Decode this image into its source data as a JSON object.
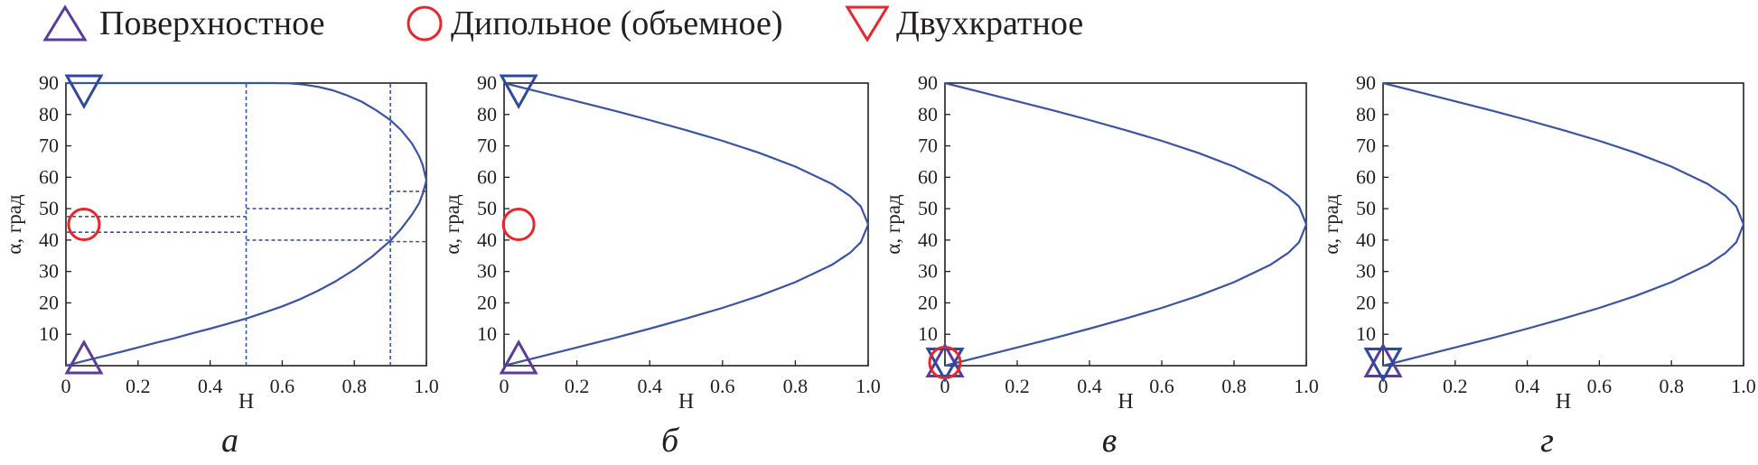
{
  "legend": {
    "surface": {
      "label": "Поверхностное",
      "marker": "triangle-up",
      "color": "#5b3c9a"
    },
    "dipole": {
      "label": "Дипольное (объемное)",
      "marker": "circle",
      "color": "#e8262b"
    },
    "double": {
      "label": "Двухкратное",
      "marker": "triangle-down",
      "color": "#e8262b"
    }
  },
  "colors": {
    "curve": "#3a54a4",
    "axes": "#231f20",
    "marker_blue": "#2e4a9c"
  },
  "chart_data": [
    {
      "type": "line",
      "panel_label": "а",
      "xlabel": "H",
      "ylabel": "α, град",
      "xlim": [
        0,
        1
      ],
      "ylim": [
        0,
        90
      ],
      "xticks": [
        "0",
        "0.2",
        "0.4",
        "0.6",
        "0.8",
        "1.0"
      ],
      "yticks": [
        "10",
        "20",
        "30",
        "40",
        "50",
        "60",
        "70",
        "80",
        "90"
      ],
      "series": [
        {
          "x": [
            0,
            0.05,
            0.1,
            0.15,
            0.2,
            0.25,
            0.3,
            0.35,
            0.4,
            0.45,
            0.5,
            0.55,
            0.6,
            0.65,
            0.7,
            0.75,
            0.8,
            0.85,
            0.9,
            0.93,
            0.96,
            0.98,
            0.99,
            1.0,
            0.99,
            0.98,
            0.96,
            0.93,
            0.9,
            0.86,
            0.82,
            0.78,
            0.74,
            0.7,
            0.66,
            0.62,
            0.58,
            0.5,
            0.3,
            0.1,
            0
          ],
          "y": [
            0,
            1.5,
            2.9,
            4.3,
            5.8,
            7.3,
            8.7,
            10.3,
            11.8,
            13.4,
            15.0,
            16.9,
            18.9,
            21.2,
            23.9,
            27.0,
            30.6,
            34.8,
            39.8,
            43.6,
            48.1,
            51.8,
            54.8,
            59.0,
            63.8,
            66.7,
            70.8,
            75.0,
            78.2,
            81.4,
            84.1,
            86.1,
            87.7,
            88.8,
            89.5,
            89.9,
            90,
            90,
            90,
            90,
            90
          ]
        }
      ],
      "reference_lines": [
        {
          "x1": 0.5,
          "y1": 0,
          "x2": 0.5,
          "y2": 90
        },
        {
          "x1": 0.9,
          "y1": 0,
          "x2": 0.9,
          "y2": 90
        },
        {
          "x1": 0,
          "y1": 47.5,
          "x2": 0.5,
          "y2": 47.5
        },
        {
          "x1": 0,
          "y1": 42.5,
          "x2": 0.5,
          "y2": 42.5
        },
        {
          "x1": 0.5,
          "y1": 50,
          "x2": 0.9,
          "y2": 50
        },
        {
          "x1": 0.5,
          "y1": 40,
          "x2": 0.9,
          "y2": 40
        },
        {
          "x1": 0.9,
          "y1": 55.5,
          "x2": 1.0,
          "y2": 55.5
        },
        {
          "x1": 0.9,
          "y1": 39.5,
          "x2": 1.0,
          "y2": 39.5
        }
      ],
      "markers": [
        {
          "kind": "triangle-down",
          "color": "#2e4a9c",
          "x": 0.05,
          "y": 88
        },
        {
          "kind": "circle",
          "color": "#e8262b",
          "x": 0.05,
          "y": 45
        },
        {
          "kind": "triangle-up",
          "color": "#5b3c9a",
          "x": 0.05,
          "y": 2
        }
      ]
    },
    {
      "type": "line",
      "panel_label": "б",
      "xlabel": "H",
      "ylabel": "α, град",
      "xlim": [
        0,
        1
      ],
      "ylim": [
        0,
        90
      ],
      "xticks": [
        "0",
        "0.2",
        "0.4",
        "0.6",
        "0.8",
        "1.0"
      ],
      "yticks": [
        "10",
        "20",
        "30",
        "40",
        "50",
        "60",
        "70",
        "80",
        "90"
      ],
      "series": [
        {
          "x": [
            0,
            0.1,
            0.2,
            0.3,
            0.4,
            0.5,
            0.6,
            0.7,
            0.8,
            0.9,
            0.95,
            0.98,
            1.0,
            0.98,
            0.95,
            0.9,
            0.8,
            0.7,
            0.6,
            0.5,
            0.4,
            0.3,
            0.2,
            0.1,
            0
          ],
          "y": [
            0,
            2.9,
            5.8,
            8.7,
            11.8,
            15.0,
            18.4,
            22.2,
            26.6,
            32.1,
            35.9,
            39.3,
            45,
            50.7,
            54.1,
            57.9,
            63.4,
            67.8,
            71.6,
            75.0,
            78.2,
            81.3,
            84.2,
            87.1,
            90
          ]
        }
      ],
      "markers": [
        {
          "kind": "triangle-down",
          "color": "#2e4a9c",
          "x": 0.04,
          "y": 88
        },
        {
          "kind": "circle",
          "color": "#e8262b",
          "x": 0.04,
          "y": 45
        },
        {
          "kind": "triangle-up",
          "color": "#5b3c9a",
          "x": 0.04,
          "y": 2
        }
      ]
    },
    {
      "type": "line",
      "panel_label": "в",
      "xlabel": "H",
      "ylabel": "α, град",
      "xlim": [
        0,
        1
      ],
      "ylim": [
        0,
        90
      ],
      "xticks": [
        "0",
        "0.2",
        "0.4",
        "0.6",
        "0.8",
        "1.0"
      ],
      "yticks": [
        "10",
        "20",
        "30",
        "40",
        "50",
        "60",
        "70",
        "80",
        "90"
      ],
      "series": [
        {
          "x": [
            0,
            0.1,
            0.2,
            0.3,
            0.4,
            0.5,
            0.6,
            0.7,
            0.8,
            0.9,
            0.95,
            0.98,
            1.0,
            0.98,
            0.95,
            0.9,
            0.8,
            0.7,
            0.6,
            0.5,
            0.4,
            0.3,
            0.2,
            0.1,
            0
          ],
          "y": [
            0,
            2.9,
            5.8,
            8.7,
            11.8,
            15.0,
            18.4,
            22.2,
            26.6,
            32.1,
            35.9,
            39.3,
            45,
            50.7,
            54.1,
            57.9,
            63.4,
            67.8,
            71.6,
            75.0,
            78.2,
            81.3,
            84.2,
            87.1,
            90
          ]
        }
      ],
      "markers": [
        {
          "kind": "triangle-up",
          "color": "#5b3c9a",
          "x": 0.0,
          "y": 1
        },
        {
          "kind": "triangle-down",
          "color": "#2e4a9c",
          "x": 0.0,
          "y": 1
        },
        {
          "kind": "circle",
          "color": "#e8262b",
          "x": 0.0,
          "y": 1
        }
      ]
    },
    {
      "type": "line",
      "panel_label": "г",
      "xlabel": "H",
      "ylabel": "α, град",
      "xlim": [
        0,
        1
      ],
      "ylim": [
        0,
        90
      ],
      "xticks": [
        "0",
        "0.2",
        "0.4",
        "0.6",
        "0.8",
        "1.0"
      ],
      "yticks": [
        "10",
        "20",
        "30",
        "40",
        "50",
        "60",
        "70",
        "80",
        "90"
      ],
      "series": [
        {
          "x": [
            0,
            0.1,
            0.2,
            0.3,
            0.4,
            0.5,
            0.6,
            0.7,
            0.8,
            0.9,
            0.95,
            0.98,
            1.0,
            0.98,
            0.95,
            0.9,
            0.8,
            0.7,
            0.6,
            0.5,
            0.4,
            0.3,
            0.2,
            0.1,
            0
          ],
          "y": [
            0,
            2.9,
            5.8,
            8.7,
            11.8,
            15.0,
            18.4,
            22.2,
            26.6,
            32.1,
            35.9,
            39.3,
            45,
            50.7,
            54.1,
            57.9,
            63.4,
            67.8,
            71.6,
            75.0,
            78.2,
            81.3,
            84.2,
            87.1,
            90
          ]
        }
      ],
      "markers": [
        {
          "kind": "triangle-up",
          "color": "#5b3c9a",
          "x": 0.0,
          "y": 1
        },
        {
          "kind": "triangle-down",
          "color": "#2e4a9c",
          "x": 0.0,
          "y": 1
        }
      ]
    }
  ]
}
